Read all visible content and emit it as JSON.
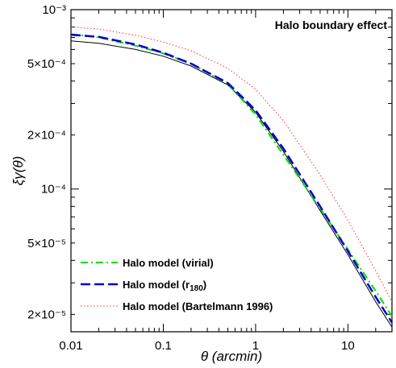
{
  "chart_data": {
    "type": "line",
    "title": "",
    "annotation": "Halo boundary effect",
    "xlabel": "θ (arcmin)",
    "ylabel": "ξγ(θ)",
    "xscale": "log",
    "yscale": "log",
    "xlim": [
      0.01,
      30
    ],
    "ylim": [
      1.6e-05,
      0.001
    ],
    "grid": false,
    "legend_position": "bottom-left",
    "x_ticks": [
      {
        "value": 0.01,
        "label": "0.01"
      },
      {
        "value": 0.1,
        "label": "0.1"
      },
      {
        "value": 1,
        "label": "1"
      },
      {
        "value": 10,
        "label": "10"
      }
    ],
    "y_ticks": [
      {
        "value": 2e-05,
        "label": "2×10⁻⁵"
      },
      {
        "value": 5e-05,
        "label": "5×10⁻⁵"
      },
      {
        "value": 0.0001,
        "label": "10⁻⁴"
      },
      {
        "value": 0.0002,
        "label": "2×10⁻⁴"
      },
      {
        "value": 0.0005,
        "label": "5×10⁻⁴"
      },
      {
        "value": 0.001,
        "label": "10⁻³"
      }
    ],
    "x": [
      0.01,
      0.02,
      0.05,
      0.1,
      0.2,
      0.5,
      1,
      2,
      5,
      10,
      20,
      30
    ],
    "series": [
      {
        "name": "Halo model (virial)",
        "color": "#00dd00",
        "dash": "dashdot",
        "values": [
          0.00073,
          0.0007,
          0.00063,
          0.00057,
          0.0005,
          0.000385,
          0.00026,
          0.000155,
          7.8e-05,
          4.6e-05,
          2.7e-05,
          1.95e-05
        ]
      },
      {
        "name": "Halo model (r180)",
        "color": "#0000cc",
        "dash": "longdash",
        "values": [
          0.000725,
          0.000705,
          0.00064,
          0.000575,
          0.0005,
          0.00039,
          0.000275,
          0.000168,
          8e-05,
          4.5e-05,
          2.5e-05,
          1.8e-05
        ]
      },
      {
        "name": "Halo model (Bartelmann 1996)",
        "color": "#ff3333",
        "dash": "dotted",
        "values": [
          0.0008,
          0.00078,
          0.00072,
          0.00066,
          0.00059,
          0.00047,
          0.00036,
          0.00024,
          0.00012,
          6.7e-05,
          3.5e-05,
          2.35e-05
        ]
      },
      {
        "name": "",
        "color": "#000000",
        "dash": "solid",
        "values": [
          0.00067,
          0.00065,
          0.0006,
          0.00055,
          0.000485,
          0.00038,
          0.000268,
          0.000162,
          7.6e-05,
          4.3e-05,
          2.35e-05,
          1.7e-05
        ]
      }
    ]
  }
}
